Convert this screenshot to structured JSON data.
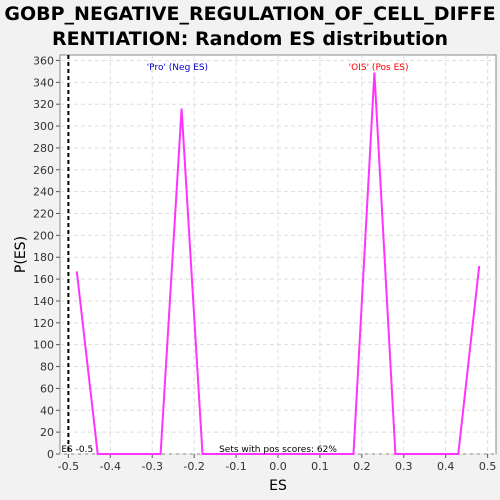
{
  "chart_data": {
    "type": "line",
    "title_lines": [
      "GOBP_NEGATIVE_REGULATION_OF_CELL_DIFFE",
      "RENTIATION: Random ES distribution"
    ],
    "xlabel": "ES",
    "ylabel": "P(ES)",
    "xlim": [
      -0.52,
      0.52
    ],
    "ylim": [
      0,
      365
    ],
    "x_ticks": [
      -0.5,
      -0.4,
      -0.3,
      -0.2,
      -0.1,
      0.0,
      0.1,
      0.2,
      0.3,
      0.4,
      0.5
    ],
    "x_tick_labels": [
      "-0.5",
      "-0.4",
      "-0.3",
      "-0.2",
      "-0.1",
      "0.0",
      "0.1",
      "0.2",
      "0.3",
      "0.4",
      "0.5"
    ],
    "y_ticks": [
      0,
      20,
      40,
      60,
      80,
      100,
      120,
      140,
      160,
      180,
      200,
      220,
      240,
      260,
      280,
      300,
      320,
      340,
      360
    ],
    "grid": true,
    "series": [
      {
        "color": "#ff33ff",
        "x": [
          -0.48,
          -0.43,
          -0.28,
          -0.23,
          -0.18,
          0.18,
          0.23,
          0.28,
          0.43,
          0.48
        ],
        "y": [
          167,
          0,
          0,
          316,
          0,
          0,
          349,
          0,
          0,
          172
        ]
      }
    ],
    "vline": {
      "x": -0.5,
      "color": "#000000",
      "style": "dashed"
    },
    "annotations": {
      "pro_label": "'Pro' (Neg ES)",
      "pro_color": "#0000cc",
      "ois_label": "'OIS' (Pos ES)",
      "ois_color": "#ff0000",
      "es_label": "ES -0.5",
      "sets_label": "Sets with pos scores: 62%"
    }
  }
}
